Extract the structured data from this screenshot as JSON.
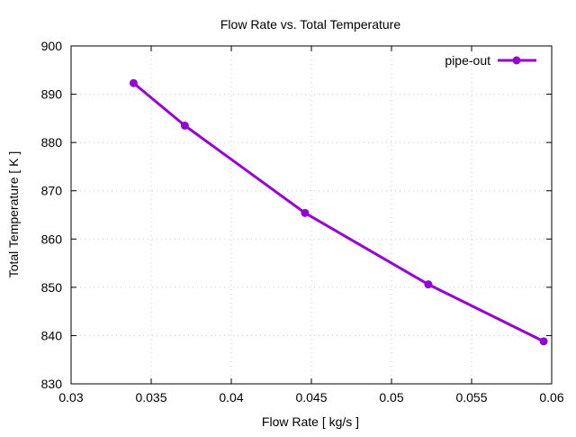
{
  "chart_data": {
    "type": "line",
    "title": "Flow Rate vs. Total Temperature",
    "xlabel": "Flow Rate [ kg/s ]",
    "ylabel": "Total Temperature [ K ]",
    "xlim": [
      0.03,
      0.06
    ],
    "ylim": [
      830,
      900
    ],
    "xticks": [
      "0.03",
      "0.035",
      "0.04",
      "0.045",
      "0.05",
      "0.055",
      "0.06"
    ],
    "yticks": [
      "830",
      "840",
      "850",
      "860",
      "870",
      "880",
      "890",
      "900"
    ],
    "grid": true,
    "legend_position": "top-right",
    "series": [
      {
        "name": "pipe-out",
        "color": "#9400d3",
        "x": [
          0.0339,
          0.0371,
          0.0446,
          0.0523,
          0.0595
        ],
        "y": [
          892.3,
          883.5,
          865.4,
          850.6,
          838.8
        ]
      }
    ]
  }
}
